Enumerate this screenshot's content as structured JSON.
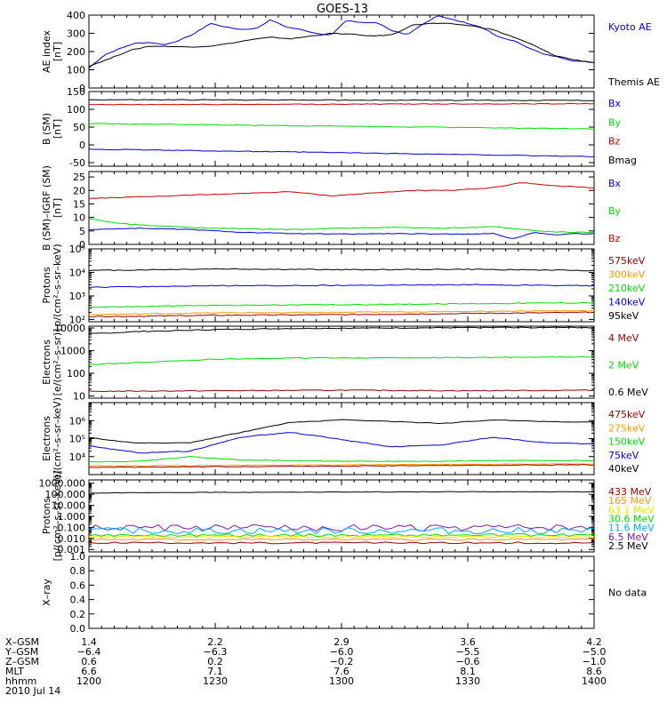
{
  "title": "GOES-13",
  "colors": {
    "black": "#000000",
    "blue": "#0000dd",
    "red": "#cc0000",
    "green": "#00dd00",
    "orange": "#ff9900",
    "yellow": "#e8e800",
    "cyan": "#00aaff",
    "purple": "#7a1fa0",
    "darkred": "#990000"
  },
  "chart_data": [
    {
      "type": "line",
      "ylabel": [
        "AE index",
        "[nT]"
      ],
      "ylim": [
        0,
        400
      ],
      "y_ticks": [
        0,
        100,
        200,
        300,
        400
      ],
      "legend": [
        {
          "label": "Kyoto AE",
          "color": "blue"
        },
        {
          "label": "Themis AE",
          "color": "black"
        }
      ],
      "series": [
        {
          "name": "Kyoto AE",
          "color": "blue",
          "x": [
            0,
            3,
            6,
            9,
            12,
            15,
            18,
            21,
            24,
            27,
            30,
            33,
            36,
            39,
            42,
            45,
            48,
            51,
            54,
            57,
            60,
            63,
            66,
            69,
            72,
            75,
            78,
            81,
            84,
            87,
            90,
            93,
            96,
            100
          ],
          "y": [
            110,
            180,
            215,
            245,
            250,
            238,
            262,
            300,
            355,
            335,
            322,
            325,
            375,
            335,
            320,
            300,
            290,
            372,
            358,
            360,
            315,
            290,
            348,
            398,
            375,
            355,
            330,
            280,
            260,
            222,
            185,
            170,
            148,
            140
          ]
        },
        {
          "name": "Themis AE",
          "color": "black",
          "x": [
            0,
            4,
            8,
            12,
            16,
            20,
            24,
            28,
            32,
            36,
            40,
            44,
            48,
            52,
            56,
            60,
            64,
            68,
            72,
            76,
            80,
            84,
            88,
            92,
            96,
            100
          ],
          "y": [
            120,
            160,
            205,
            230,
            228,
            225,
            230,
            245,
            265,
            278,
            270,
            285,
            300,
            295,
            285,
            292,
            345,
            355,
            352,
            340,
            320,
            280,
            235,
            180,
            155,
            140
          ]
        }
      ]
    },
    {
      "type": "line",
      "ylabel": [
        "B (SM)",
        "[nT]"
      ],
      "ylim": [
        -60,
        150
      ],
      "y_ticks": [
        -50,
        0,
        50,
        100,
        150
      ],
      "legend": [
        {
          "label": "Bx",
          "color": "blue"
        },
        {
          "label": "By",
          "color": "green"
        },
        {
          "label": "Bz",
          "color": "red"
        },
        {
          "label": "Bmag",
          "color": "black"
        }
      ],
      "series": [
        {
          "name": "Bmag",
          "color": "black",
          "x": [
            0,
            100
          ],
          "y": [
            127,
            125
          ]
        },
        {
          "name": "Bz",
          "color": "red",
          "x": [
            0,
            100
          ],
          "y": [
            113,
            116
          ]
        },
        {
          "name": "By",
          "color": "green",
          "x": [
            0,
            100
          ],
          "y": [
            60,
            45
          ]
        },
        {
          "name": "Bx",
          "color": "blue",
          "x": [
            0,
            50,
            100
          ],
          "y": [
            -12,
            -22,
            -33
          ]
        }
      ]
    },
    {
      "type": "line",
      "ylabel": [
        "B (SM)–IGRF (SM)",
        "[nT]"
      ],
      "ylim": [
        0,
        27
      ],
      "y_ticks": [
        0,
        5,
        10,
        15,
        20,
        25
      ],
      "legend": [
        {
          "label": "Bx",
          "color": "blue"
        },
        {
          "label": "By",
          "color": "green"
        },
        {
          "label": "Bz",
          "color": "red"
        }
      ],
      "series": [
        {
          "name": "Bz",
          "color": "red",
          "x": [
            0,
            8,
            16,
            24,
            32,
            40,
            48,
            56,
            64,
            72,
            80,
            86,
            90,
            94,
            100
          ],
          "y": [
            17,
            17.5,
            18,
            18.5,
            19,
            19.5,
            18,
            19,
            20,
            20,
            21,
            23,
            22,
            21.5,
            21
          ]
        },
        {
          "name": "By",
          "color": "green",
          "x": [
            0,
            5,
            10,
            20,
            30,
            40,
            50,
            60,
            70,
            80,
            86,
            90,
            95,
            100
          ],
          "y": [
            9.5,
            8,
            7.2,
            6.3,
            5.8,
            5.5,
            6,
            6.3,
            6,
            6.5,
            5.5,
            4.8,
            4.5,
            4.5
          ]
        },
        {
          "name": "Bx",
          "color": "blue",
          "x": [
            0,
            10,
            20,
            30,
            40,
            50,
            60,
            70,
            80,
            84,
            88,
            92,
            96,
            100
          ],
          "y": [
            5.5,
            6,
            5.5,
            4.5,
            4,
            3.8,
            4,
            3.8,
            4,
            2,
            4.5,
            3.5,
            4,
            4
          ]
        }
      ]
    },
    {
      "type": "line",
      "yscale": "log",
      "ylabel": [
        "Protons",
        "p/(cm²–s–sr–keV)"
      ],
      "ylim": [
        80,
        100000
      ],
      "y_ticks_text": [
        "10²",
        "10³",
        "10⁴",
        "10⁵"
      ],
      "y_ticks": [
        100,
        1000,
        10000,
        100000
      ],
      "legend": [
        {
          "label": "575keV",
          "color": "darkred"
        },
        {
          "label": "300keV",
          "color": "orange"
        },
        {
          "label": "210keV",
          "color": "green"
        },
        {
          "label": "140keV",
          "color": "blue"
        },
        {
          "label": "95keV",
          "color": "black"
        }
      ],
      "series": [
        {
          "name": "95keV",
          "color": "black",
          "x": [
            0,
            25,
            50,
            75,
            100
          ],
          "y": [
            12000,
            14000,
            13000,
            13500,
            12000
          ]
        },
        {
          "name": "140keV",
          "color": "blue",
          "x": [
            0,
            25,
            50,
            75,
            100
          ],
          "y": [
            2300,
            2700,
            2800,
            3000,
            2700
          ]
        },
        {
          "name": "210keV",
          "color": "green",
          "x": [
            0,
            25,
            50,
            75,
            100
          ],
          "y": [
            330,
            400,
            420,
            470,
            520
          ]
        },
        {
          "name": "300keV",
          "color": "orange",
          "x": [
            0,
            25,
            50,
            75,
            100
          ],
          "y": [
            160,
            190,
            200,
            220,
            240
          ]
        },
        {
          "name": "575keV",
          "color": "darkred",
          "x": [
            0,
            25,
            50,
            75,
            100
          ],
          "y": [
            130,
            150,
            160,
            180,
            200
          ]
        }
      ]
    },
    {
      "type": "line",
      "yscale": "log",
      "ylabel": [
        "Electrons",
        "[e/(cm²–s–sr)]"
      ],
      "ylim": [
        8,
        12000
      ],
      "y_ticks_text": [
        "10",
        "100",
        "1000",
        "10000"
      ],
      "y_ticks": [
        10,
        100,
        1000,
        10000
      ],
      "legend": [
        {
          "label": "4 MeV",
          "color": "darkred"
        },
        {
          "label": "2 MeV",
          "color": "green"
        },
        {
          "label": "0.6 MeV",
          "color": "black"
        }
      ],
      "series": [
        {
          "name": "0.6 MeV",
          "color": "black",
          "x": [
            0,
            10,
            25,
            40,
            60,
            80,
            100
          ],
          "y": [
            5500,
            7000,
            8500,
            9500,
            10000,
            10500,
            10500
          ]
        },
        {
          "name": "2 MeV",
          "color": "green",
          "x": [
            0,
            10,
            25,
            40,
            60,
            80,
            100
          ],
          "y": [
            240,
            300,
            420,
            470,
            480,
            500,
            540
          ]
        },
        {
          "name": "4 MeV",
          "color": "darkred",
          "x": [
            0,
            25,
            50,
            75,
            100
          ],
          "y": [
            16,
            17,
            18,
            17,
            18
          ]
        }
      ]
    },
    {
      "type": "line",
      "yscale": "log",
      "ylabel": [
        "Electrons",
        "e/(cm²–s–sr–keV)"
      ],
      "ylim": [
        1000,
        10000000
      ],
      "y_ticks_text": [
        "10⁴",
        "10⁵",
        "10⁶"
      ],
      "y_ticks": [
        10000,
        100000,
        1000000
      ],
      "legend": [
        {
          "label": "475keV",
          "color": "darkred"
        },
        {
          "label": "275keV",
          "color": "orange"
        },
        {
          "label": "150keV",
          "color": "green"
        },
        {
          "label": "75keV",
          "color": "blue"
        },
        {
          "label": "40keV",
          "color": "black"
        }
      ],
      "series": [
        {
          "name": "40keV",
          "color": "black",
          "x": [
            0,
            10,
            20,
            30,
            40,
            50,
            60,
            70,
            80,
            90,
            100
          ],
          "y": [
            110000,
            55000,
            60000,
            220000,
            800000,
            1100000,
            900000,
            700000,
            1100000,
            900000,
            800000
          ]
        },
        {
          "name": "75keV",
          "color": "blue",
          "x": [
            0,
            10,
            20,
            30,
            40,
            50,
            60,
            70,
            80,
            90,
            100
          ],
          "y": [
            40000,
            16000,
            20000,
            120000,
            220000,
            90000,
            35000,
            45000,
            120000,
            60000,
            50000
          ]
        },
        {
          "name": "150keV",
          "color": "green",
          "x": [
            0,
            10,
            20,
            30,
            40,
            50,
            60,
            70,
            80,
            90,
            100
          ],
          "y": [
            5000,
            5500,
            10000,
            6500,
            6000,
            5500,
            5500,
            5500,
            6000,
            6000,
            6000
          ]
        },
        {
          "name": "275keV",
          "color": "orange",
          "x": [
            0,
            50,
            100
          ],
          "y": [
            3000,
            3500,
            4000
          ]
        },
        {
          "name": "475keV",
          "color": "darkred",
          "x": [
            0,
            50,
            100
          ],
          "y": [
            2500,
            3000,
            3500
          ]
        }
      ]
    },
    {
      "type": "line",
      "yscale": "log",
      "ylabel": [
        "Protons",
        "[p/(cm²–s–sr–keV)]"
      ],
      "ylim": [
        0.0006,
        2000
      ],
      "y_ticks_text": [
        "0.001",
        "0.010",
        "0.100",
        "1.000",
        "10.000",
        "100.000",
        "1000.000"
      ],
      "y_ticks": [
        0.001,
        0.01,
        0.1,
        1,
        10,
        100,
        1000
      ],
      "legend": [
        {
          "label": "433 MeV",
          "color": "darkred"
        },
        {
          "label": "165 MeV",
          "color": "orange"
        },
        {
          "label": "63.1 MeV",
          "color": "yellow"
        },
        {
          "label": "30.6 MeV",
          "color": "green"
        },
        {
          "label": "11.6 MeV",
          "color": "cyan"
        },
        {
          "label": "6.5 MeV",
          "color": "purple"
        },
        {
          "label": "2.5 MeV",
          "color": "black"
        }
      ],
      "series": [
        {
          "name": "2.5 MeV",
          "color": "black",
          "x": [
            0,
            25,
            50,
            75,
            100
          ],
          "y": [
            130,
            150,
            160,
            170,
            165
          ]
        },
        {
          "name": "6.5 MeV",
          "color": "purple",
          "noise": 0.6,
          "x": [
            0,
            100
          ],
          "y": [
            0.09,
            0.09
          ]
        },
        {
          "name": "11.6 MeV",
          "color": "cyan",
          "noise": 0.6,
          "x": [
            0,
            100
          ],
          "y": [
            0.05,
            0.05
          ]
        },
        {
          "name": "30.6 MeV",
          "color": "green",
          "noise": 0.25,
          "x": [
            0,
            100
          ],
          "y": [
            0.02,
            0.02
          ]
        },
        {
          "name": "63.1 MeV",
          "color": "yellow",
          "noise": 0.15,
          "x": [
            0,
            100
          ],
          "y": [
            0.014,
            0.014
          ]
        },
        {
          "name": "165 MeV",
          "color": "orange",
          "noise": 0.15,
          "x": [
            0,
            100
          ],
          "y": [
            0.008,
            0.008
          ]
        },
        {
          "name": "433 MeV",
          "color": "darkred",
          "noise": 0.15,
          "x": [
            0,
            100
          ],
          "y": [
            0.004,
            0.004
          ]
        }
      ]
    },
    {
      "type": "line",
      "ylabel": [
        "X–ray",
        ""
      ],
      "ylim": [
        0,
        1
      ],
      "y_ticks_text": [
        "0.0",
        "0.2",
        "0.4",
        "0.6",
        "0.8",
        "1.0"
      ],
      "y_ticks": [
        0,
        0.2,
        0.4,
        0.6,
        0.8,
        1.0
      ],
      "legend": [
        {
          "label": "No data",
          "color": "black"
        }
      ],
      "series": []
    }
  ],
  "footer": {
    "row_labels": [
      "X–GSM",
      "Y–GSM",
      "Z–GSM",
      "MLT",
      "hhmm",
      "2010 Jul 14"
    ],
    "columns": [
      {
        "x": 0,
        "values": [
          "1.4",
          "−6.4",
          "0.6",
          "6.6",
          "1200"
        ]
      },
      {
        "x": 25,
        "values": [
          "2.2",
          "−6.3",
          "0.2",
          "7.1",
          "1230"
        ]
      },
      {
        "x": 50,
        "values": [
          "2.9",
          "−6.0",
          "−0.2",
          "7.6",
          "1300"
        ]
      },
      {
        "x": 75,
        "values": [
          "3.6",
          "−5.5",
          "−0.6",
          "8.1",
          "1330"
        ]
      },
      {
        "x": 100,
        "values": [
          "4.2",
          "−5.0",
          "−1.0",
          "8.6",
          "1400"
        ]
      }
    ]
  }
}
